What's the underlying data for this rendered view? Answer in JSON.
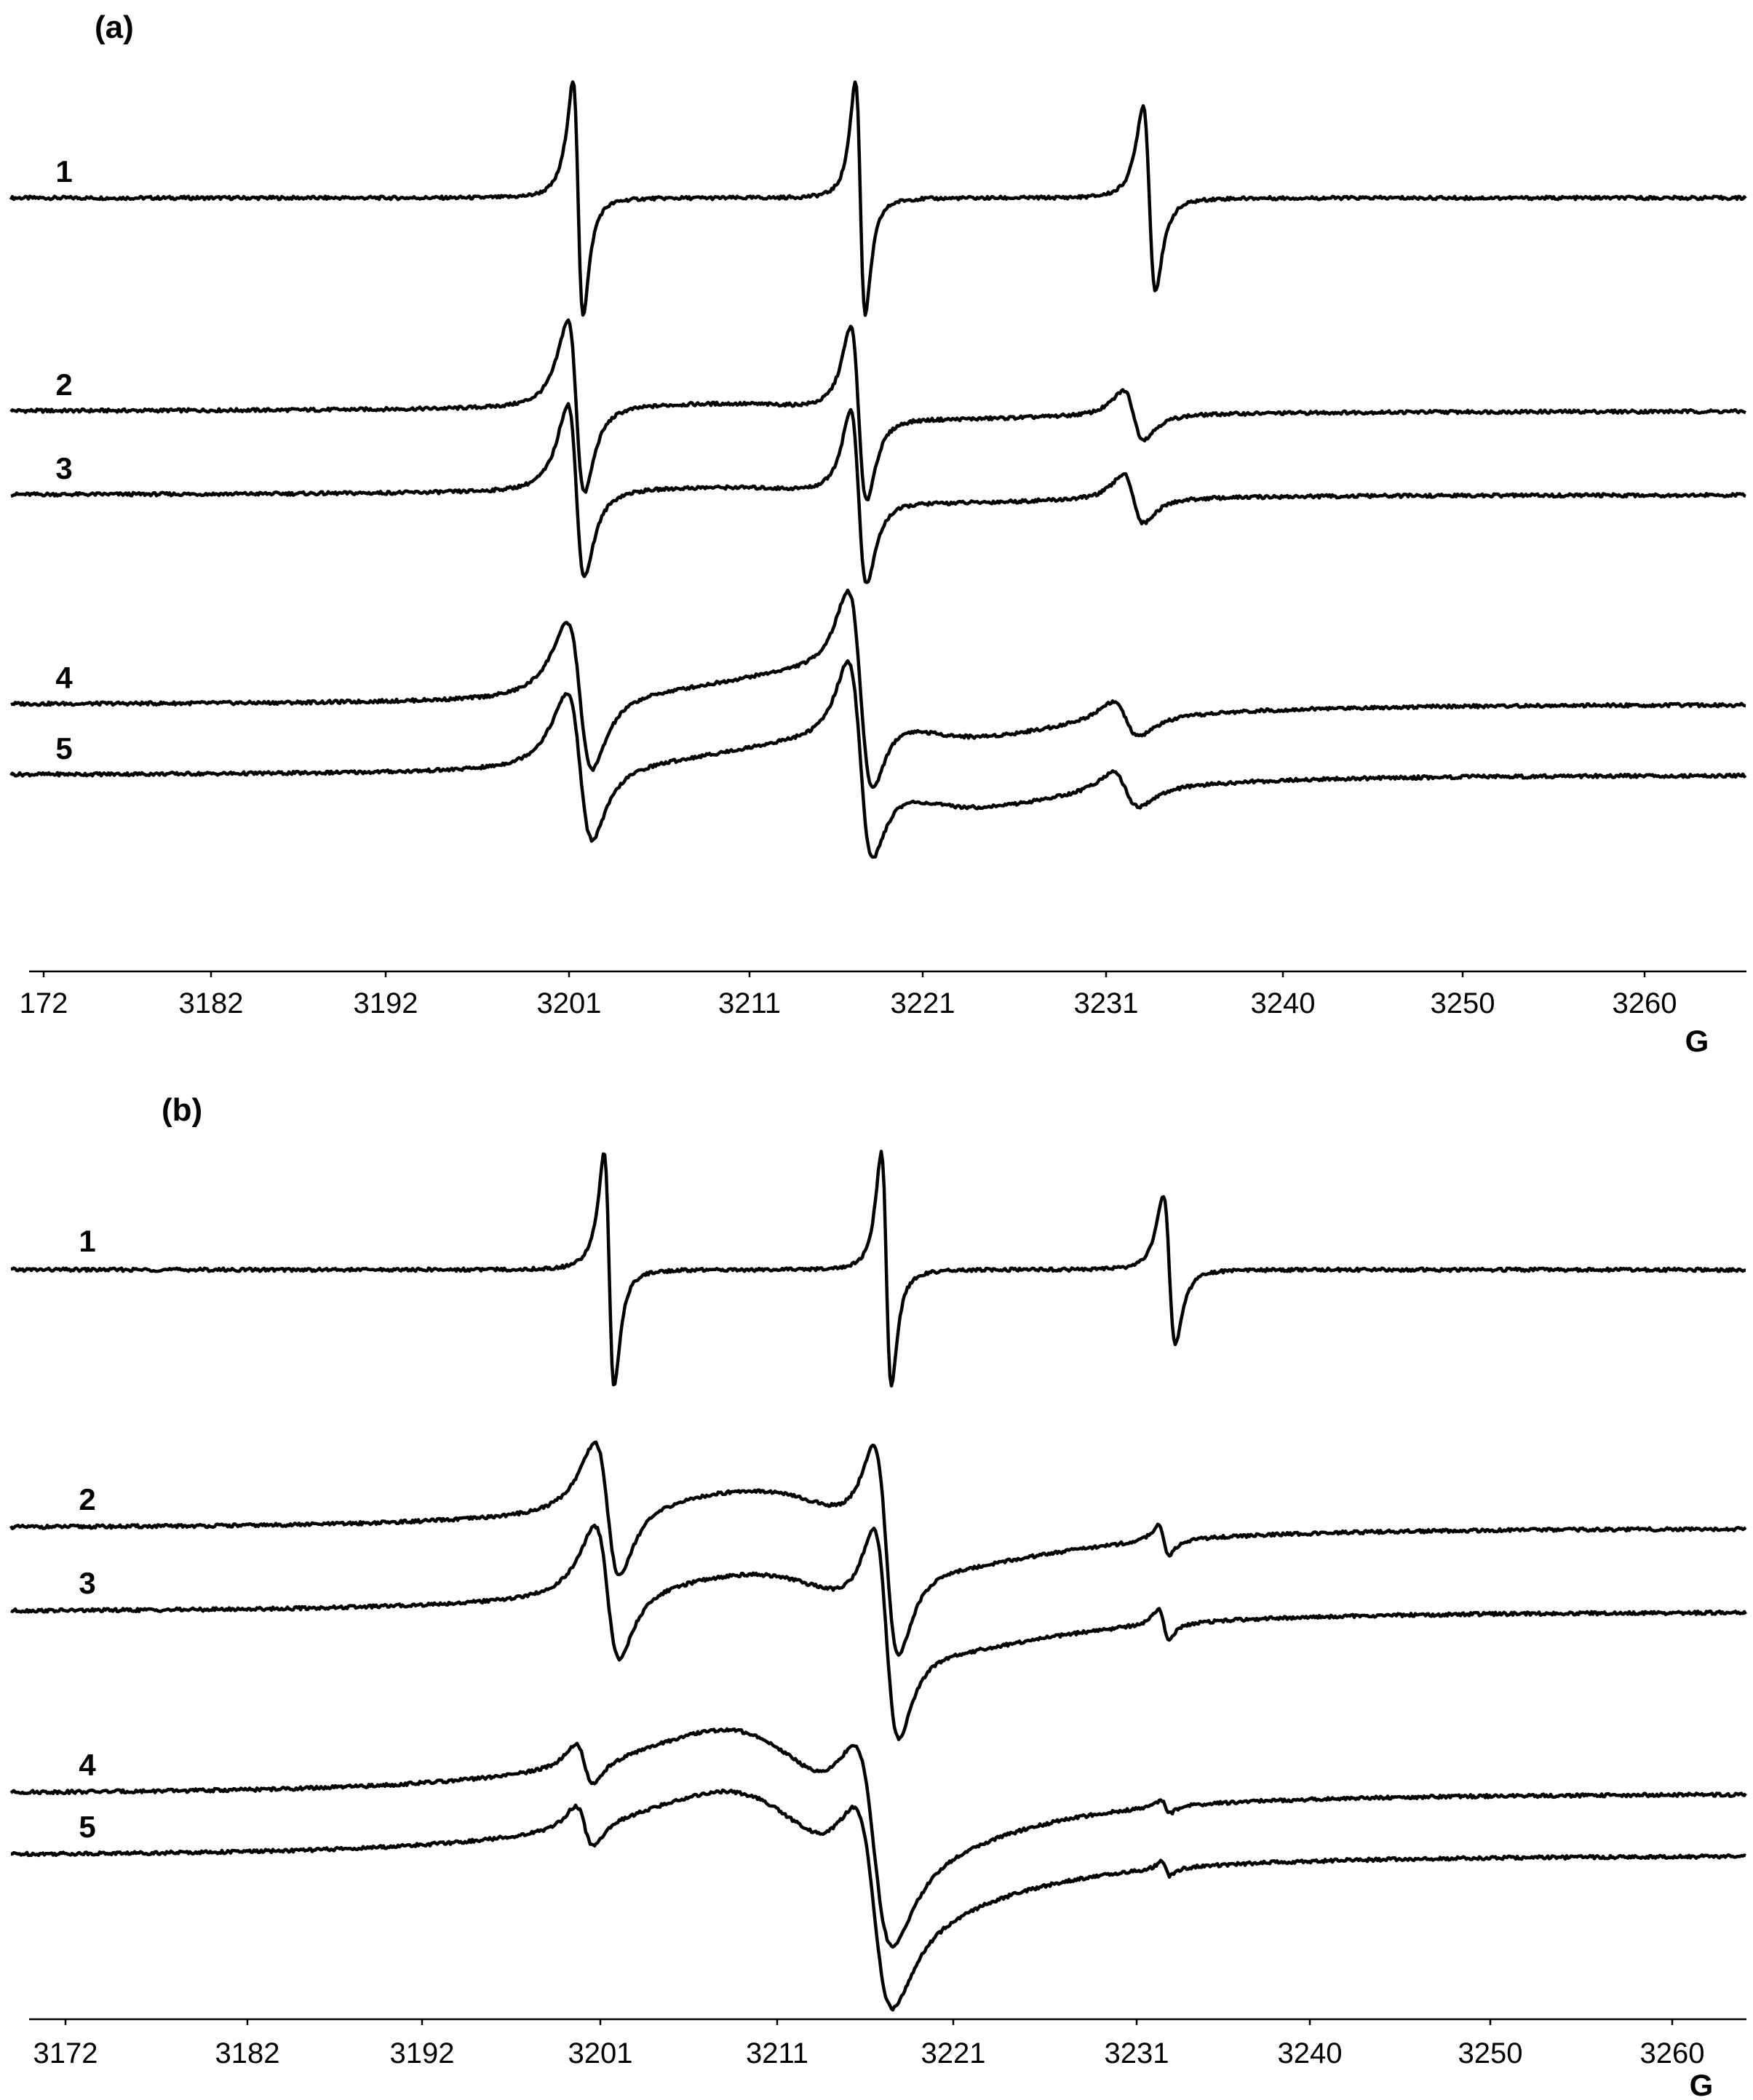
{
  "chart_data": [
    {
      "type": "line",
      "panel_label": "(a)",
      "x_unit": "G",
      "x_ticks": [
        "172",
        "3182",
        "3192",
        "3201",
        "3211",
        "3221",
        "3231",
        "3240",
        "3250",
        "3260"
      ],
      "xlim": [
        3170,
        3266
      ],
      "series": [
        {
          "name": "1",
          "peaks": [
            {
              "center": 3201.5,
              "width": 0.5,
              "amp": 1.9
            },
            {
              "center": 3217.4,
              "width": 0.5,
              "amp": 1.9
            },
            {
              "center": 3233.2,
              "width": 0.55,
              "amp": 1.5
            }
          ]
        },
        {
          "name": "2",
          "peaks": [
            {
              "center": 3201.4,
              "width": 0.8,
              "amp": 1.4
            },
            {
              "center": 3217.3,
              "width": 0.8,
              "amp": 1.4
            },
            {
              "center": 3232.4,
              "width": 0.9,
              "amp": 0.4
            }
          ],
          "broad": {
            "center": 3216,
            "width": 12,
            "amp": 0.12
          }
        },
        {
          "name": "3",
          "peaks": [
            {
              "center": 3201.4,
              "width": 0.8,
              "amp": 1.4
            },
            {
              "center": 3217.3,
              "width": 0.8,
              "amp": 1.4
            },
            {
              "center": 3232.4,
              "width": 0.9,
              "amp": 0.4
            }
          ],
          "broad": {
            "center": 3216,
            "width": 12,
            "amp": 0.12
          }
        },
        {
          "name": "4",
          "peaks": [
            {
              "center": 3201.6,
              "width": 1.2,
              "amp": 1.2
            },
            {
              "center": 3217.4,
              "width": 1.2,
              "amp": 1.5
            },
            {
              "center": 3232.0,
              "width": 1.2,
              "amp": 0.3
            }
          ],
          "broad": {
            "center": 3219,
            "width": 9,
            "amp": 0.5
          }
        },
        {
          "name": "5",
          "peaks": [
            {
              "center": 3201.6,
              "width": 1.2,
              "amp": 1.2
            },
            {
              "center": 3217.4,
              "width": 1.2,
              "amp": 1.5
            },
            {
              "center": 3232.0,
              "width": 1.2,
              "amp": 0.3
            }
          ],
          "broad": {
            "center": 3219,
            "width": 9,
            "amp": 0.5
          }
        }
      ]
    },
    {
      "type": "line",
      "panel_label": "(b)",
      "x_unit": "G",
      "x_ticks": [
        "3172",
        "3182",
        "3192",
        "3201",
        "3211",
        "3221",
        "3231",
        "3240",
        "3250",
        "3260"
      ],
      "xlim": [
        3170,
        3266
      ],
      "series": [
        {
          "name": "1",
          "peaks": [
            {
              "center": 3201.5,
              "width": 0.5,
              "amp": 1.9
            },
            {
              "center": 3217.2,
              "width": 0.5,
              "amp": 1.9
            },
            {
              "center": 3232.7,
              "width": 0.55,
              "amp": 1.2
            }
          ]
        },
        {
          "name": "2",
          "peaks": [
            {
              "center": 3201.4,
              "width": 1.2,
              "amp": 1.1
            },
            {
              "center": 3217.2,
              "width": 1.2,
              "amp": 1.6
            },
            {
              "center": 3232.4,
              "width": 0.5,
              "amp": 0.25
            }
          ],
          "broad": {
            "center": 3215,
            "width": 10,
            "amp": 0.6
          }
        },
        {
          "name": "3",
          "peaks": [
            {
              "center": 3201.4,
              "width": 1.2,
              "amp": 1.1
            },
            {
              "center": 3217.2,
              "width": 1.2,
              "amp": 1.6
            },
            {
              "center": 3232.4,
              "width": 0.5,
              "amp": 0.25
            }
          ],
          "broad": {
            "center": 3215,
            "width": 10,
            "amp": 0.6
          }
        },
        {
          "name": "4",
          "peaks": [
            {
              "center": 3200.2,
              "width": 0.8,
              "amp": 0.35
            },
            {
              "center": 3216.5,
              "width": 1.8,
              "amp": 1.5
            },
            {
              "center": 3232.5,
              "width": 0.4,
              "amp": 0.12
            }
          ],
          "broad": {
            "center": 3213,
            "width": 9,
            "amp": 1.0
          }
        },
        {
          "name": "5",
          "peaks": [
            {
              "center": 3200.2,
              "width": 0.8,
              "amp": 0.35
            },
            {
              "center": 3216.5,
              "width": 1.8,
              "amp": 1.5
            },
            {
              "center": 3232.5,
              "width": 0.4,
              "amp": 0.12
            }
          ],
          "broad": {
            "center": 3213,
            "width": 9,
            "amp": 1.0
          }
        }
      ]
    }
  ]
}
